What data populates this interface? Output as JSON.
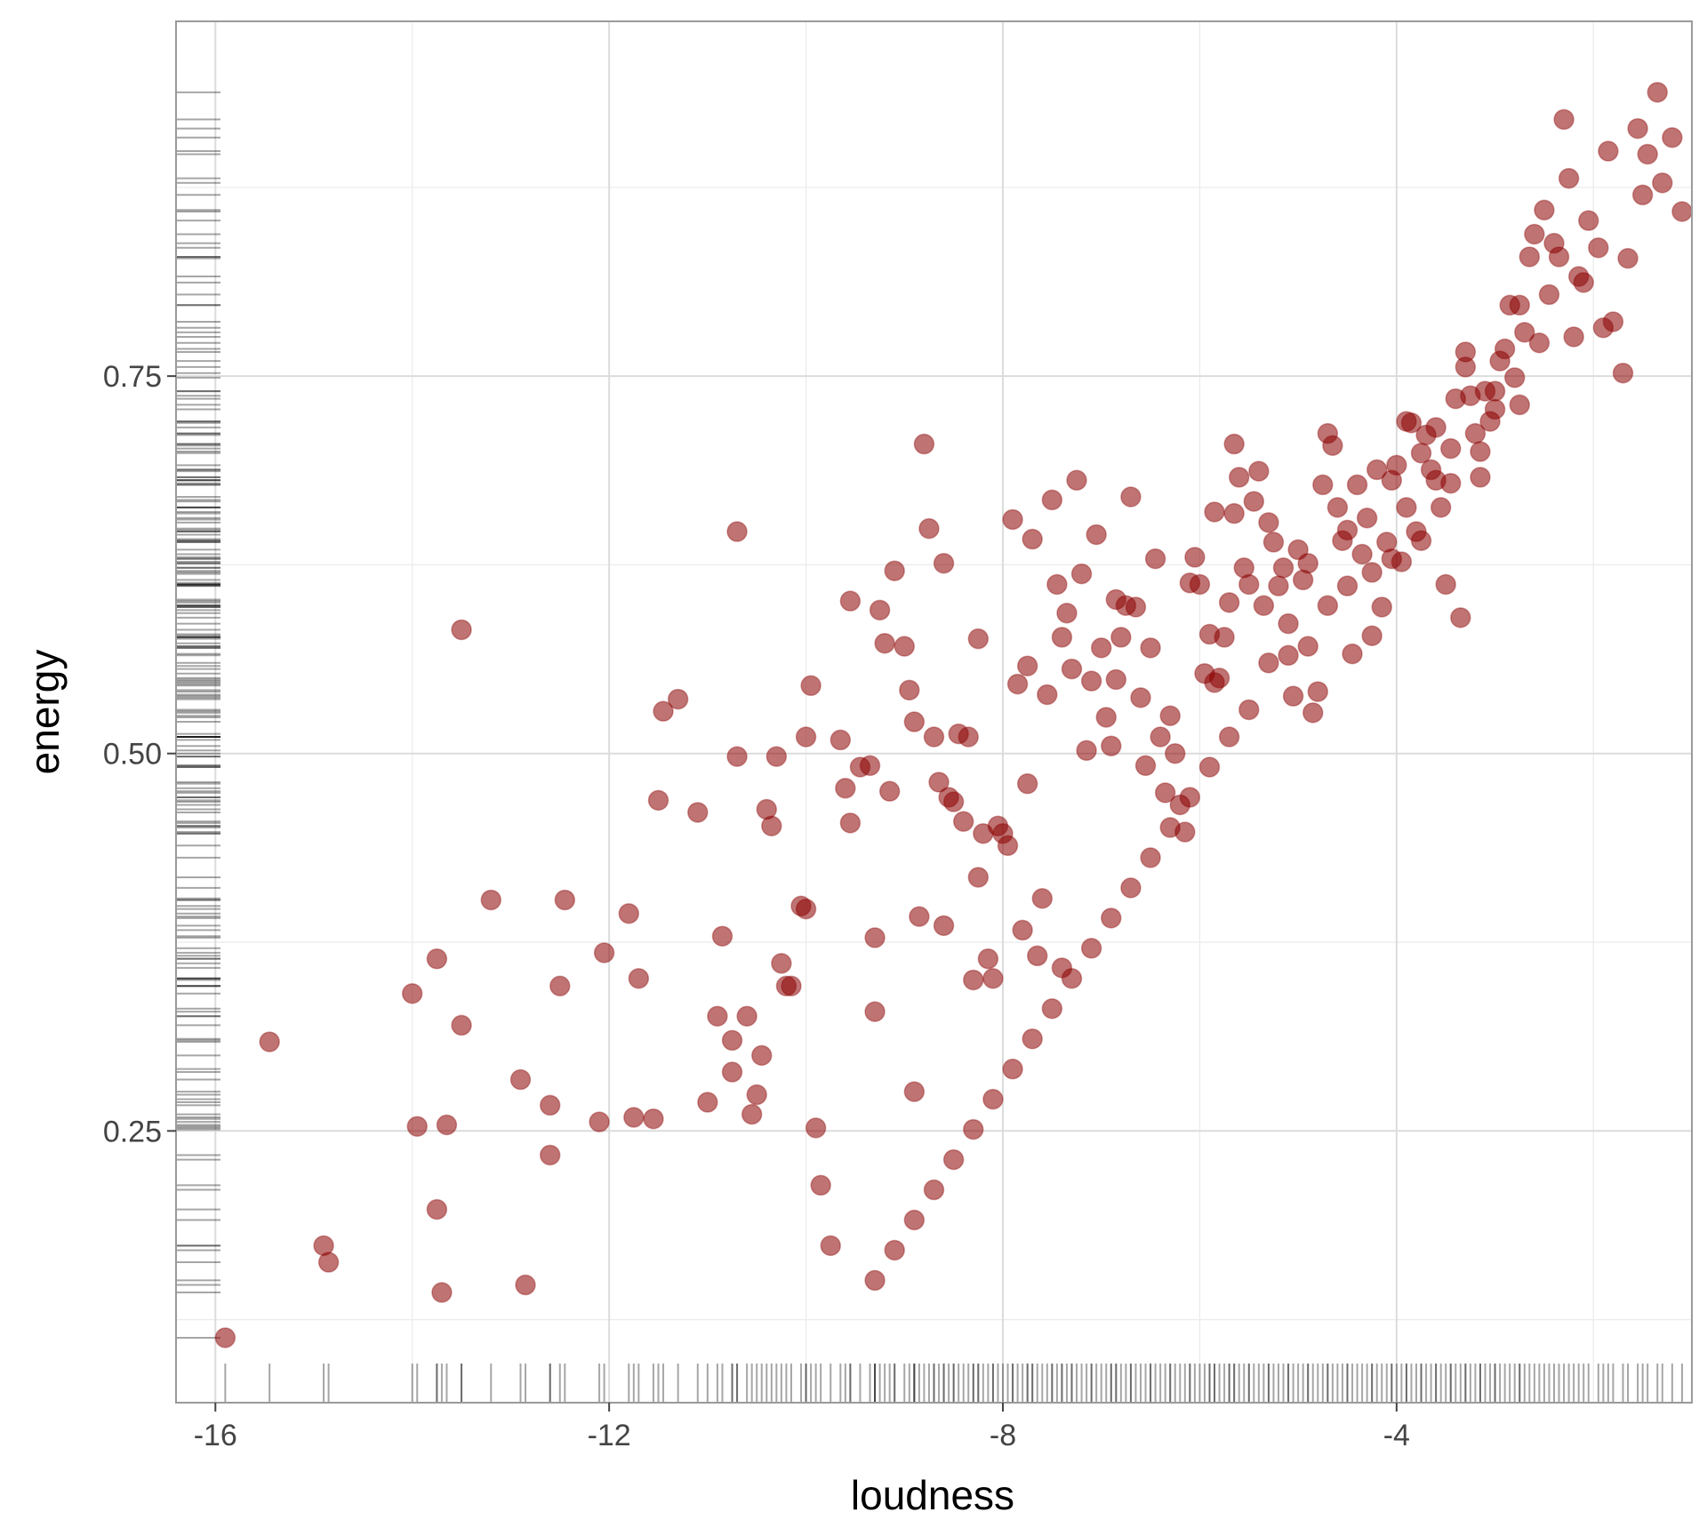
{
  "chart_data": {
    "type": "scatter",
    "xlabel": "loudness",
    "ylabel": "energy",
    "xlim": [
      -16.4,
      -1.0
    ],
    "ylim": [
      0.07,
      0.985
    ],
    "xticks": [
      -16,
      -12,
      -8,
      -4
    ],
    "xtick_labels": [
      "-16",
      "-12",
      "-8",
      "-4"
    ],
    "yticks": [
      0.25,
      0.5,
      0.75
    ],
    "ytick_labels": [
      "0.25",
      "0.50",
      "0.75"
    ],
    "x_minor": [
      -14,
      -10,
      -6,
      -2
    ],
    "y_minor": [
      0.125,
      0.375,
      0.625,
      0.875
    ],
    "grid": true,
    "rug": true,
    "point_color": "#8b0000",
    "point_alpha": 0.55,
    "points": [
      [
        -15.9,
        0.113
      ],
      [
        -15.45,
        0.309
      ],
      [
        -14.9,
        0.174
      ],
      [
        -14.85,
        0.163
      ],
      [
        -14.0,
        0.341
      ],
      [
        -13.95,
        0.253
      ],
      [
        -13.75,
        0.198
      ],
      [
        -13.75,
        0.364
      ],
      [
        -13.7,
        0.143
      ],
      [
        -13.65,
        0.254
      ],
      [
        -13.5,
        0.32
      ],
      [
        -13.5,
        0.582
      ],
      [
        -13.2,
        0.403
      ],
      [
        -12.9,
        0.284
      ],
      [
        -12.85,
        0.148
      ],
      [
        -12.6,
        0.267
      ],
      [
        -12.6,
        0.234
      ],
      [
        -12.5,
        0.346
      ],
      [
        -12.45,
        0.403
      ],
      [
        -12.1,
        0.256
      ],
      [
        -12.05,
        0.368
      ],
      [
        -11.8,
        0.394
      ],
      [
        -11.7,
        0.351
      ],
      [
        -11.75,
        0.259
      ],
      [
        -11.55,
        0.258
      ],
      [
        -11.5,
        0.469
      ],
      [
        -11.45,
        0.528
      ],
      [
        -11.3,
        0.536
      ],
      [
        -11.1,
        0.461
      ],
      [
        -11.0,
        0.269
      ],
      [
        -10.9,
        0.326
      ],
      [
        -10.85,
        0.379
      ],
      [
        -10.75,
        0.31
      ],
      [
        -10.75,
        0.289
      ],
      [
        -10.7,
        0.498
      ],
      [
        -10.7,
        0.647
      ],
      [
        -10.6,
        0.326
      ],
      [
        -10.55,
        0.261
      ],
      [
        -10.5,
        0.274
      ],
      [
        -10.45,
        0.3
      ],
      [
        -10.4,
        0.463
      ],
      [
        -10.35,
        0.452
      ],
      [
        -10.3,
        0.498
      ],
      [
        -10.25,
        0.361
      ],
      [
        -10.2,
        0.346
      ],
      [
        -10.15,
        0.346
      ],
      [
        -10.05,
        0.399
      ],
      [
        -10.0,
        0.397
      ],
      [
        -10.0,
        0.511
      ],
      [
        -9.95,
        0.545
      ],
      [
        -9.9,
        0.252
      ],
      [
        -9.85,
        0.214
      ],
      [
        -9.75,
        0.174
      ],
      [
        -9.65,
        0.509
      ],
      [
        -9.6,
        0.477
      ],
      [
        -9.55,
        0.454
      ],
      [
        -9.55,
        0.601
      ],
      [
        -9.45,
        0.491
      ],
      [
        -9.35,
        0.492
      ],
      [
        -9.3,
        0.378
      ],
      [
        -9.3,
        0.329
      ],
      [
        -9.25,
        0.595
      ],
      [
        -9.2,
        0.573
      ],
      [
        -9.15,
        0.475
      ],
      [
        -9.1,
        0.621
      ],
      [
        -9.0,
        0.571
      ],
      [
        -8.95,
        0.542
      ],
      [
        -8.9,
        0.521
      ],
      [
        -8.9,
        0.276
      ],
      [
        -8.85,
        0.392
      ],
      [
        -8.8,
        0.705
      ],
      [
        -8.75,
        0.649
      ],
      [
        -8.7,
        0.511
      ],
      [
        -8.65,
        0.481
      ],
      [
        -8.6,
        0.386
      ],
      [
        -8.6,
        0.626
      ],
      [
        -8.55,
        0.471
      ],
      [
        -8.5,
        0.468
      ],
      [
        -8.45,
        0.513
      ],
      [
        -8.4,
        0.455
      ],
      [
        -8.35,
        0.511
      ],
      [
        -8.3,
        0.35
      ],
      [
        -8.25,
        0.576
      ],
      [
        -8.25,
        0.418
      ],
      [
        -8.2,
        0.447
      ],
      [
        -8.15,
        0.364
      ],
      [
        -8.1,
        0.351
      ],
      [
        -8.05,
        0.452
      ],
      [
        -8.0,
        0.447
      ],
      [
        -7.95,
        0.439
      ],
      [
        -7.9,
        0.655
      ],
      [
        -7.85,
        0.546
      ],
      [
        -7.8,
        0.383
      ],
      [
        -7.75,
        0.48
      ],
      [
        -7.75,
        0.558
      ],
      [
        -7.7,
        0.642
      ],
      [
        -7.65,
        0.366
      ],
      [
        -7.6,
        0.404
      ],
      [
        -7.55,
        0.539
      ],
      [
        -7.5,
        0.668
      ],
      [
        -7.45,
        0.612
      ],
      [
        -7.4,
        0.577
      ],
      [
        -7.4,
        0.358
      ],
      [
        -7.35,
        0.593
      ],
      [
        -7.3,
        0.556
      ],
      [
        -7.25,
        0.681
      ],
      [
        -7.2,
        0.619
      ],
      [
        -7.15,
        0.502
      ],
      [
        -7.1,
        0.548
      ],
      [
        -7.05,
        0.645
      ],
      [
        -7.0,
        0.57
      ],
      [
        -6.95,
        0.524
      ],
      [
        -6.9,
        0.505
      ],
      [
        -6.85,
        0.549
      ],
      [
        -6.85,
        0.602
      ],
      [
        -6.8,
        0.577
      ],
      [
        -6.75,
        0.598
      ],
      [
        -6.7,
        0.67
      ],
      [
        -6.65,
        0.597
      ],
      [
        -6.6,
        0.537
      ],
      [
        -6.55,
        0.492
      ],
      [
        -6.5,
        0.57
      ],
      [
        -6.45,
        0.629
      ],
      [
        -6.4,
        0.511
      ],
      [
        -6.35,
        0.474
      ],
      [
        -6.3,
        0.525
      ],
      [
        -6.25,
        0.5
      ],
      [
        -6.2,
        0.466
      ],
      [
        -6.15,
        0.448
      ],
      [
        -6.1,
        0.613
      ],
      [
        -6.05,
        0.63
      ],
      [
        -6.0,
        0.612
      ],
      [
        -5.95,
        0.553
      ],
      [
        -5.9,
        0.579
      ],
      [
        -5.85,
        0.547
      ],
      [
        -5.85,
        0.66
      ],
      [
        -5.8,
        0.55
      ],
      [
        -5.75,
        0.577
      ],
      [
        -5.7,
        0.6
      ],
      [
        -5.65,
        0.659
      ],
      [
        -5.65,
        0.705
      ],
      [
        -5.6,
        0.683
      ],
      [
        -5.55,
        0.623
      ],
      [
        -5.5,
        0.612
      ],
      [
        -5.45,
        0.667
      ],
      [
        -5.4,
        0.687
      ],
      [
        -5.35,
        0.598
      ],
      [
        -5.3,
        0.653
      ],
      [
        -5.25,
        0.64
      ],
      [
        -5.2,
        0.611
      ],
      [
        -5.15,
        0.623
      ],
      [
        -5.1,
        0.565
      ],
      [
        -5.05,
        0.538
      ],
      [
        -5.0,
        0.635
      ],
      [
        -4.95,
        0.615
      ],
      [
        -4.9,
        0.626
      ],
      [
        -4.85,
        0.527
      ],
      [
        -4.8,
        0.541
      ],
      [
        -4.75,
        0.678
      ],
      [
        -4.7,
        0.712
      ],
      [
        -4.65,
        0.704
      ],
      [
        -4.6,
        0.663
      ],
      [
        -4.55,
        0.641
      ],
      [
        -4.5,
        0.611
      ],
      [
        -4.45,
        0.566
      ],
      [
        -4.4,
        0.678
      ],
      [
        -4.35,
        0.632
      ],
      [
        -4.3,
        0.656
      ],
      [
        -4.25,
        0.578
      ],
      [
        -4.2,
        0.688
      ],
      [
        -4.15,
        0.597
      ],
      [
        -4.1,
        0.64
      ],
      [
        -4.05,
        0.681
      ],
      [
        -4.0,
        0.691
      ],
      [
        -3.95,
        0.627
      ],
      [
        -3.9,
        0.72
      ],
      [
        -3.85,
        0.719
      ],
      [
        -3.8,
        0.647
      ],
      [
        -3.75,
        0.699
      ],
      [
        -3.7,
        0.711
      ],
      [
        -3.65,
        0.688
      ],
      [
        -3.6,
        0.716
      ],
      [
        -3.55,
        0.663
      ],
      [
        -3.5,
        0.612
      ],
      [
        -3.45,
        0.679
      ],
      [
        -3.4,
        0.735
      ],
      [
        -3.35,
        0.59
      ],
      [
        -3.3,
        0.766
      ],
      [
        -3.25,
        0.737
      ],
      [
        -3.2,
        0.712
      ],
      [
        -3.15,
        0.683
      ],
      [
        -3.1,
        0.74
      ],
      [
        -3.05,
        0.72
      ],
      [
        -3.0,
        0.728
      ],
      [
        -2.95,
        0.76
      ],
      [
        -2.9,
        0.768
      ],
      [
        -2.85,
        0.797
      ],
      [
        -2.8,
        0.749
      ],
      [
        -2.75,
        0.797
      ],
      [
        -2.7,
        0.779
      ],
      [
        -2.6,
        0.844
      ],
      [
        -2.5,
        0.86
      ],
      [
        -2.45,
        0.804
      ],
      [
        -2.4,
        0.838
      ],
      [
        -2.3,
        0.92
      ],
      [
        -2.25,
        0.881
      ],
      [
        -2.2,
        0.776
      ],
      [
        -2.1,
        0.812
      ],
      [
        -1.95,
        0.835
      ],
      [
        -1.9,
        0.782
      ],
      [
        -1.8,
        0.786
      ],
      [
        -1.7,
        0.752
      ],
      [
        -1.55,
        0.914
      ],
      [
        -1.5,
        0.87
      ],
      [
        -1.45,
        0.897
      ],
      [
        -1.35,
        0.938
      ],
      [
        -1.3,
        0.878
      ],
      [
        -1.2,
        0.908
      ],
      [
        -1.1,
        0.859
      ],
      [
        -2.55,
        0.772
      ],
      [
        -2.65,
        0.829
      ],
      [
        -2.35,
        0.829
      ],
      [
        -2.05,
        0.853
      ],
      [
        -1.65,
        0.828
      ],
      [
        -1.85,
        0.899
      ],
      [
        -2.15,
        0.816
      ],
      [
        -2.75,
        0.731
      ],
      [
        -3.0,
        0.74
      ],
      [
        -3.15,
        0.7
      ],
      [
        -3.3,
        0.756
      ],
      [
        -3.45,
        0.702
      ],
      [
        -3.6,
        0.681
      ],
      [
        -3.75,
        0.641
      ],
      [
        -3.9,
        0.663
      ],
      [
        -4.05,
        0.629
      ],
      [
        -4.25,
        0.62
      ],
      [
        -4.5,
        0.648
      ],
      [
        -4.7,
        0.598
      ],
      [
        -4.9,
        0.571
      ],
      [
        -5.1,
        0.586
      ],
      [
        -5.3,
        0.56
      ],
      [
        -5.5,
        0.529
      ],
      [
        -5.7,
        0.511
      ],
      [
        -5.9,
        0.491
      ],
      [
        -6.1,
        0.471
      ],
      [
        -6.3,
        0.451
      ],
      [
        -6.5,
        0.431
      ],
      [
        -6.7,
        0.411
      ],
      [
        -6.9,
        0.391
      ],
      [
        -7.1,
        0.371
      ],
      [
        -7.3,
        0.351
      ],
      [
        -7.5,
        0.331
      ],
      [
        -7.7,
        0.311
      ],
      [
        -7.9,
        0.291
      ],
      [
        -8.1,
        0.271
      ],
      [
        -8.3,
        0.251
      ],
      [
        -8.5,
        0.231
      ],
      [
        -8.7,
        0.211
      ],
      [
        -8.9,
        0.191
      ],
      [
        -9.1,
        0.171
      ],
      [
        -9.3,
        0.151
      ]
    ]
  }
}
